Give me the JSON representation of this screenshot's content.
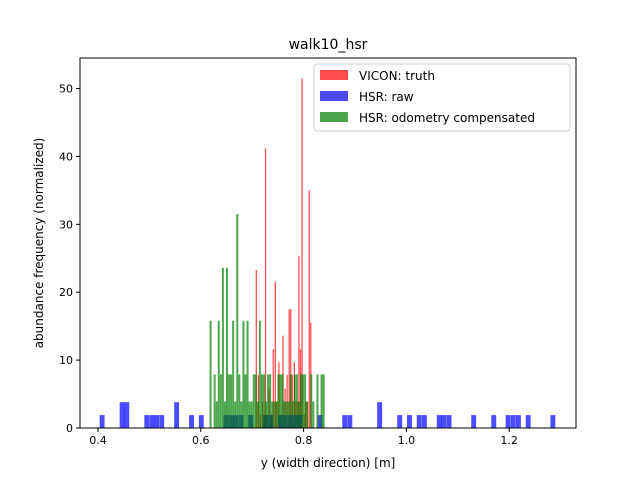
{
  "chart_data": {
    "type": "bar",
    "title": "walk10_hsr",
    "xlabel": "y (width direction) [m]",
    "ylabel": "abundance frequency (normalized)",
    "xlim": [
      0.365,
      1.33
    ],
    "ylim": [
      0,
      54.5
    ],
    "xticks": [
      "0.4",
      "0.6",
      "0.8",
      "1.0",
      "1.2"
    ],
    "xtick_values": [
      0.4,
      0.6,
      0.8,
      1.0,
      1.2
    ],
    "yticks": [
      "0",
      "10",
      "20",
      "30",
      "40",
      "50"
    ],
    "ytick_values": [
      0,
      10,
      20,
      30,
      40,
      50
    ],
    "legend_position": "upper right",
    "series": [
      {
        "name": "VICON: truth",
        "color": "#ff0000",
        "opacity": 0.7,
        "bin_width": 0.0025,
        "bars": [
          [
            0.708,
            23.3
          ],
          [
            0.712,
            7.8
          ],
          [
            0.716,
            2.0
          ],
          [
            0.72,
            3.9
          ],
          [
            0.723,
            2.0
          ],
          [
            0.726,
            41.2
          ],
          [
            0.729,
            2.0
          ],
          [
            0.733,
            5.8
          ],
          [
            0.737,
            2.0
          ],
          [
            0.741,
            11.6
          ],
          [
            0.745,
            21.5
          ],
          [
            0.748,
            3.9
          ],
          [
            0.752,
            9.7
          ],
          [
            0.756,
            2.0
          ],
          [
            0.76,
            13.6
          ],
          [
            0.764,
            5.8
          ],
          [
            0.768,
            7.8
          ],
          [
            0.772,
            17.5
          ],
          [
            0.775,
            17.5
          ],
          [
            0.778,
            7.8
          ],
          [
            0.782,
            9.7
          ],
          [
            0.785,
            3.9
          ],
          [
            0.789,
            3.9
          ],
          [
            0.791,
            25.3
          ],
          [
            0.794,
            11.6
          ],
          [
            0.797,
            51.5
          ],
          [
            0.801,
            2.0
          ],
          [
            0.804,
            3.9
          ],
          [
            0.807,
            3.9
          ],
          [
            0.811,
            35.0
          ],
          [
            0.814,
            15.5
          ]
        ]
      },
      {
        "name": "HSR: raw",
        "color": "#0000ff",
        "opacity": 0.7,
        "bin_width": 0.0096,
        "bars": [
          [
            0.408,
            1.9
          ],
          [
            0.447,
            3.8
          ],
          [
            0.456,
            3.8
          ],
          [
            0.495,
            1.9
          ],
          [
            0.505,
            1.9
          ],
          [
            0.514,
            1.9
          ],
          [
            0.524,
            1.9
          ],
          [
            0.553,
            3.8
          ],
          [
            0.582,
            1.9
          ],
          [
            0.601,
            1.9
          ],
          [
            0.649,
            1.9
          ],
          [
            0.659,
            1.9
          ],
          [
            0.668,
            1.9
          ],
          [
            0.678,
            1.9
          ],
          [
            0.697,
            1.9
          ],
          [
            0.726,
            1.9
          ],
          [
            0.736,
            1.9
          ],
          [
            0.755,
            1.9
          ],
          [
            0.764,
            1.9
          ],
          [
            0.774,
            1.9
          ],
          [
            0.784,
            1.9
          ],
          [
            0.793,
            1.9
          ],
          [
            0.832,
            1.9
          ],
          [
            0.88,
            1.9
          ],
          [
            0.89,
            1.9
          ],
          [
            0.948,
            3.8
          ],
          [
            0.987,
            1.9
          ],
          [
            1.006,
            1.9
          ],
          [
            1.025,
            1.9
          ],
          [
            1.035,
            1.9
          ],
          [
            1.064,
            1.9
          ],
          [
            1.073,
            1.9
          ],
          [
            1.083,
            1.9
          ],
          [
            1.131,
            1.9
          ],
          [
            1.17,
            1.9
          ],
          [
            1.198,
            1.9
          ],
          [
            1.208,
            1.9
          ],
          [
            1.218,
            1.9
          ],
          [
            1.237,
            1.9
          ],
          [
            1.285,
            1.9
          ]
        ]
      },
      {
        "name": "HSR: odometry compensated",
        "color": "#008000",
        "opacity": 0.7,
        "bin_width": 0.0039,
        "bars": [
          [
            0.619,
            15.8
          ],
          [
            0.627,
            7.9
          ],
          [
            0.631,
            3.9
          ],
          [
            0.635,
            15.8
          ],
          [
            0.639,
            7.9
          ],
          [
            0.643,
            23.6
          ],
          [
            0.647,
            3.9
          ],
          [
            0.651,
            23.6
          ],
          [
            0.655,
            7.9
          ],
          [
            0.659,
            7.9
          ],
          [
            0.663,
            15.8
          ],
          [
            0.667,
            3.9
          ],
          [
            0.671,
            31.5
          ],
          [
            0.675,
            7.9
          ],
          [
            0.679,
            3.9
          ],
          [
            0.683,
            15.8
          ],
          [
            0.687,
            7.9
          ],
          [
            0.691,
            15.8
          ],
          [
            0.695,
            3.9
          ],
          [
            0.699,
            3.9
          ],
          [
            0.703,
            7.9
          ],
          [
            0.707,
            7.9
          ],
          [
            0.711,
            3.9
          ],
          [
            0.715,
            15.8
          ],
          [
            0.719,
            7.9
          ],
          [
            0.723,
            7.9
          ],
          [
            0.727,
            3.9
          ],
          [
            0.731,
            7.9
          ],
          [
            0.735,
            7.9
          ],
          [
            0.739,
            3.9
          ],
          [
            0.743,
            3.9
          ],
          [
            0.747,
            3.9
          ],
          [
            0.751,
            7.9
          ],
          [
            0.755,
            7.9
          ],
          [
            0.759,
            7.9
          ],
          [
            0.763,
            3.9
          ],
          [
            0.767,
            3.9
          ],
          [
            0.771,
            3.9
          ],
          [
            0.775,
            7.9
          ],
          [
            0.779,
            3.9
          ],
          [
            0.783,
            7.9
          ],
          [
            0.787,
            7.9
          ],
          [
            0.791,
            3.9
          ],
          [
            0.795,
            7.9
          ],
          [
            0.799,
            7.9
          ],
          [
            0.803,
            7.9
          ],
          [
            0.807,
            3.9
          ],
          [
            0.815,
            7.9
          ],
          [
            0.819,
            3.9
          ],
          [
            0.827,
            7.9
          ],
          [
            0.835,
            7.9
          ],
          [
            0.839,
            7.9
          ]
        ]
      }
    ]
  }
}
